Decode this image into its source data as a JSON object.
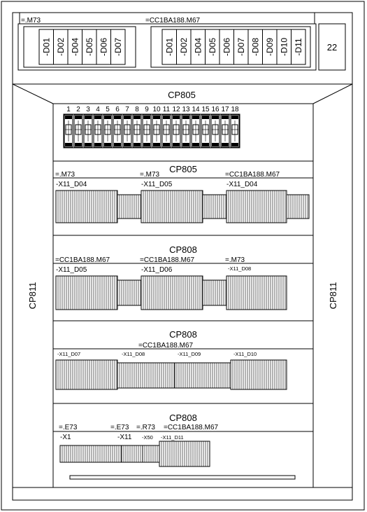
{
  "left_group": {
    "tag": "=.M73",
    "modules": [
      "-D01",
      "-D02",
      "-D04",
      "-D05",
      "-D06",
      "-D07"
    ]
  },
  "right_group": {
    "tag": "=CC1BA188.M67",
    "modules": [
      "-D01",
      "-D02",
      "-D04",
      "-D05",
      "-D06",
      "-D07",
      "-D08",
      "-D09",
      "-D10",
      "-D11"
    ]
  },
  "box_number": "22",
  "side_labels": {
    "left": "CP811",
    "right": "CP811"
  },
  "header_title": "CP805",
  "terminal_strip": {
    "numbers": [
      "1",
      "2",
      "3",
      "4",
      "5",
      "6",
      "7",
      "8",
      "9",
      "10",
      "11",
      "12",
      "13",
      "14",
      "15",
      "16",
      "17",
      "18"
    ]
  },
  "sections": [
    {
      "title": "CP805",
      "tags": [
        "=.M73",
        "=.M73",
        "=CC1BA188.M67"
      ],
      "blocks": [
        "-X11_D04",
        "-X11_D05",
        "-X11_D04"
      ]
    },
    {
      "title": "CP808",
      "tags": [
        "=CC1BA188.M67",
        "=CC1BA188.M67",
        "=.M73"
      ],
      "blocks": [
        "-X11_D05",
        "-X11_D06",
        "-X11_D08"
      ]
    },
    {
      "title": "CP808",
      "tags": [
        "=CC1BA188.M67"
      ],
      "blocks": [
        "-X11_D07",
        "-X11_D08",
        "-X11_D09",
        "-X11_D10"
      ]
    },
    {
      "title": "CP808",
      "tags": [
        "=.E73",
        "=.E73",
        "=.R73",
        "=CC1BA188.M67"
      ],
      "blocks": [
        "-X1",
        "-X11",
        "-X50",
        "-X11_D11"
      ]
    }
  ]
}
